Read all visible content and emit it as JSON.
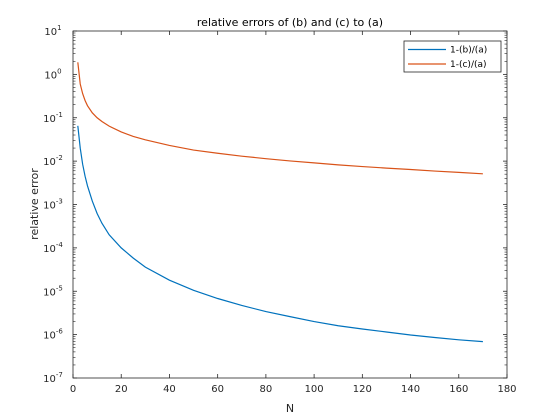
{
  "chart_data": {
    "type": "line",
    "title": "relative errors of (b) and (c) to (a)",
    "xlabel": "N",
    "ylabel": "relative error",
    "xlim": [
      0,
      180
    ],
    "ylim": [
      1e-07,
      10
    ],
    "yscale": "log",
    "xticks": [
      0,
      20,
      40,
      60,
      80,
      100,
      120,
      140,
      160,
      180
    ],
    "ytick_exponents": [
      -7,
      -6,
      -5,
      -4,
      -3,
      -2,
      -1,
      0,
      1
    ],
    "ytick_base": "10",
    "grid": false,
    "legend_position": "top-right",
    "series": [
      {
        "name": "1-(b)/(a)",
        "color": "#0072BD",
        "points": [
          [
            2,
            0.065
          ],
          [
            3,
            0.02
          ],
          [
            4,
            0.0085
          ],
          [
            5,
            0.0045
          ],
          [
            6,
            0.0027
          ],
          [
            8,
            0.0012
          ],
          [
            10,
            0.00062
          ],
          [
            12,
            0.00037
          ],
          [
            15,
            0.0002
          ],
          [
            20,
            0.0001
          ],
          [
            25,
            5.8e-05
          ],
          [
            30,
            3.6e-05
          ],
          [
            40,
            1.8e-05
          ],
          [
            50,
            1.05e-05
          ],
          [
            60,
            6.8e-06
          ],
          [
            70,
            4.7e-06
          ],
          [
            80,
            3.4e-06
          ],
          [
            90,
            2.6e-06
          ],
          [
            100,
            2e-06
          ],
          [
            110,
            1.6e-06
          ],
          [
            120,
            1.35e-06
          ],
          [
            130,
            1.15e-06
          ],
          [
            140,
            9.8e-07
          ],
          [
            150,
            8.6e-07
          ],
          [
            160,
            7.6e-07
          ],
          [
            170,
            6.9e-07
          ]
        ]
      },
      {
        "name": "1-(c)/(a)",
        "color": "#D95319",
        "points": [
          [
            2,
            1.9
          ],
          [
            3,
            0.6
          ],
          [
            4,
            0.36
          ],
          [
            5,
            0.25
          ],
          [
            6,
            0.19
          ],
          [
            8,
            0.13
          ],
          [
            10,
            0.1
          ],
          [
            12,
            0.082
          ],
          [
            15,
            0.064
          ],
          [
            20,
            0.047
          ],
          [
            25,
            0.037
          ],
          [
            30,
            0.031
          ],
          [
            40,
            0.023
          ],
          [
            50,
            0.018
          ],
          [
            60,
            0.0152
          ],
          [
            70,
            0.013
          ],
          [
            80,
            0.0114
          ],
          [
            90,
            0.0101
          ],
          [
            100,
            0.0091
          ],
          [
            110,
            0.0082
          ],
          [
            120,
            0.0075
          ],
          [
            130,
            0.0069
          ],
          [
            140,
            0.0064
          ],
          [
            150,
            0.0059
          ],
          [
            160,
            0.0055
          ],
          [
            170,
            0.0051
          ]
        ]
      }
    ]
  }
}
